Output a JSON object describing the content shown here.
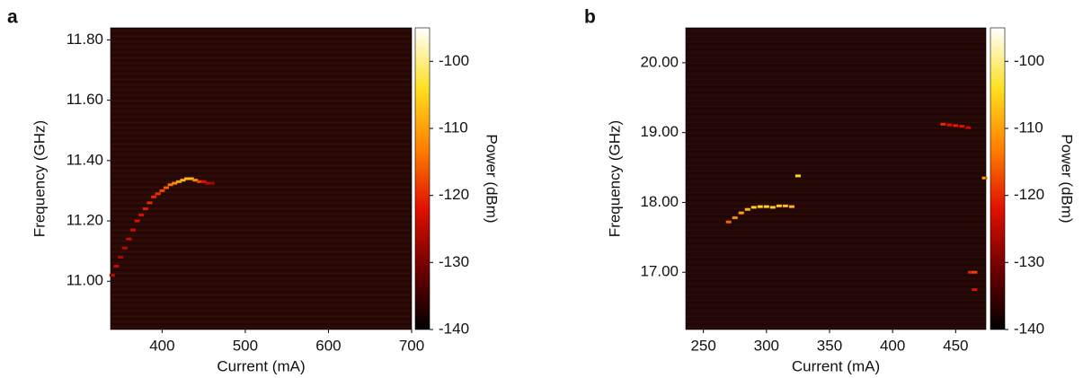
{
  "chart_data": [
    {
      "type": "heatmap",
      "panel": "a",
      "xlabel": "Current (mA)",
      "ylabel": "Frequency (GHz)",
      "colorbar_label": "Power (dBm)",
      "xlim": [
        338,
        700
      ],
      "xticks": [
        400,
        500,
        600,
        700
      ],
      "ylim": [
        10.84,
        11.84
      ],
      "yticks": [
        {
          "value": 11.0,
          "label": "11.00"
        },
        {
          "value": 11.2,
          "label": "11.20"
        },
        {
          "value": 11.4,
          "label": "11.40"
        },
        {
          "value": 11.6,
          "label": "11.60"
        },
        {
          "value": 11.8,
          "label": "11.80"
        }
      ],
      "clim": [
        -140,
        -95
      ],
      "cticks": [
        -140,
        -130,
        -120,
        -110,
        -100
      ],
      "background_color": "#2a0906",
      "colormap": [
        "#000000",
        "#6e0000",
        "#e01000",
        "#ff8000",
        "#ffe020",
        "#ffffff"
      ],
      "trace": {
        "x": [
          340,
          345,
          350,
          355,
          360,
          365,
          370,
          375,
          380,
          385,
          390,
          395,
          400,
          405,
          410,
          415,
          420,
          425,
          430,
          435,
          440,
          445,
          450,
          455,
          460
        ],
        "y": [
          11.02,
          11.05,
          11.08,
          11.11,
          11.14,
          11.17,
          11.2,
          11.22,
          11.24,
          11.26,
          11.28,
          11.29,
          11.3,
          11.31,
          11.32,
          11.325,
          11.33,
          11.335,
          11.34,
          11.34,
          11.335,
          11.33,
          11.33,
          11.325,
          11.325
        ],
        "values": [
          -125,
          -124,
          -126,
          -125,
          -124,
          -123,
          -122,
          -122,
          -121,
          -120,
          -120,
          -119,
          -118,
          -116,
          -114,
          -112,
          -110,
          -108,
          -107,
          -108,
          -112,
          -118,
          -122,
          -125,
          -127
        ]
      }
    },
    {
      "type": "heatmap",
      "panel": "b",
      "xlabel": "Current (mA)",
      "ylabel": "Frequency (GHz)",
      "colorbar_label": "Power (dBm)",
      "xlim": [
        236,
        474
      ],
      "xticks": [
        250,
        300,
        350,
        400,
        450
      ],
      "ylim": [
        16.18,
        20.5
      ],
      "yticks": [
        {
          "value": 17.0,
          "label": "17.00"
        },
        {
          "value": 18.0,
          "label": "18.00"
        },
        {
          "value": 19.0,
          "label": "19.00"
        },
        {
          "value": 20.0,
          "label": "20.00"
        }
      ],
      "clim": [
        -140,
        -95
      ],
      "cticks": [
        -140,
        -130,
        -120,
        -110,
        -100
      ],
      "background_color": "#240805",
      "colormap": [
        "#000000",
        "#6e0000",
        "#e01000",
        "#ff8000",
        "#ffe020",
        "#ffffff"
      ],
      "trace": {
        "x": [
          270,
          275,
          280,
          285,
          290,
          295,
          300,
          305,
          310,
          315,
          320,
          325,
          440,
          445,
          450,
          455,
          460,
          462,
          465,
          465,
          473
        ],
        "y": [
          17.72,
          17.78,
          17.85,
          17.9,
          17.93,
          17.94,
          17.94,
          17.93,
          17.95,
          17.95,
          17.94,
          18.38,
          19.12,
          19.11,
          19.1,
          19.09,
          19.07,
          17.0,
          17.0,
          16.75,
          18.35
        ],
        "values": [
          -115,
          -112,
          -110,
          -108,
          -106,
          -105,
          -105,
          -106,
          -106,
          -107,
          -108,
          -105,
          -120,
          -122,
          -121,
          -122,
          -124,
          -120,
          -118,
          -122,
          -110
        ]
      }
    }
  ]
}
